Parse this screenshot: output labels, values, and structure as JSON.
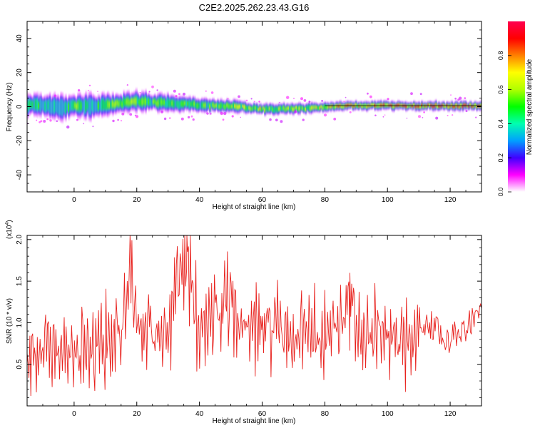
{
  "title": "C2E2.2025.262.23.43.G16",
  "chart_data": [
    {
      "type": "heatmap",
      "xlabel": "Height of straight line (km)",
      "ylabel": "Frequency (Hz)",
      "xlim": [
        -15,
        130
      ],
      "ylim": [
        -50,
        50
      ],
      "xticks": [
        "0",
        "20",
        "40",
        "60",
        "80",
        "100",
        "120"
      ],
      "yticks": [
        "40",
        "20",
        "0",
        "-20",
        "-40"
      ],
      "colorbar": {
        "label": "Normalized spectral amplitude",
        "range": [
          0,
          1
        ],
        "ticks": [
          "0.0",
          "0.2",
          "0.4",
          "0.6",
          "0.8"
        ],
        "colors": [
          "#ffffff",
          "#ff00ff",
          "#4000ff",
          "#00a0ff",
          "#00ffb0",
          "#00ff00",
          "#b0ff00",
          "#ffff00",
          "#ff8000",
          "#ff0000",
          "#ff0050"
        ]
      },
      "band": {
        "x": [
          -15,
          -10,
          -5,
          0,
          5,
          10,
          15,
          20,
          25,
          30,
          35,
          40,
          45,
          50,
          55,
          60,
          65,
          70,
          75,
          80,
          85,
          90,
          95,
          100,
          105,
          110,
          115,
          120,
          125,
          130
        ],
        "center_hz": [
          1,
          0.5,
          -0.5,
          0.5,
          0,
          1,
          2,
          3,
          2.5,
          2,
          1.5,
          1,
          0.5,
          0.5,
          -0.5,
          -1.5,
          -1.5,
          -1,
          -1,
          0,
          0.5,
          0.5,
          0.5,
          0.5,
          0.5,
          0.5,
          0.5,
          0.5,
          0.5,
          0.5
        ],
        "halfwidth_hz": [
          6,
          6,
          7,
          6,
          7,
          6,
          6,
          6,
          5,
          5,
          4,
          4,
          3.5,
          3.5,
          3,
          3,
          3,
          3,
          3,
          2.5,
          2.5,
          2.5,
          2.5,
          2.5,
          2.5,
          2.5,
          2.5,
          2.5,
          2.5,
          2.5
        ],
        "amplitude": [
          0.5,
          0.45,
          0.35,
          0.55,
          0.4,
          0.5,
          0.6,
          0.55,
          0.55,
          0.5,
          0.5,
          0.5,
          0.55,
          0.6,
          0.6,
          0.65,
          0.6,
          0.6,
          0.6,
          0.7,
          0.75,
          0.75,
          0.8,
          0.85,
          0.85,
          0.85,
          0.9,
          0.9,
          0.9,
          0.9
        ]
      }
    },
    {
      "type": "line",
      "xlabel": "Height of straight line (km)",
      "ylabel": "SNR (10 * v/v)",
      "y_multiplier": "(x10",
      "y_multiplier_exp": "4",
      "y_multiplier_close": ")",
      "xlim": [
        -15,
        130
      ],
      "ylim": [
        0,
        2.05
      ],
      "xticks": [
        "0",
        "20",
        "40",
        "60",
        "80",
        "100",
        "120"
      ],
      "yticks": [
        "2.0",
        "1.5",
        "1.0",
        "0.5"
      ],
      "line_color": "#e8221e",
      "series": [
        {
          "x": [
            -15,
            -10,
            -5,
            0,
            5,
            10,
            15,
            18,
            20,
            25,
            30,
            36,
            40,
            45,
            50,
            55,
            60,
            65,
            70,
            75,
            80,
            85,
            88,
            90,
            95,
            100,
            105,
            108,
            110,
            115,
            120,
            125,
            130
          ],
          "y": [
            0.6,
            0.75,
            0.7,
            0.8,
            0.75,
            0.8,
            0.95,
            1.9,
            1.0,
            1.0,
            1.05,
            2.05,
            1.0,
            1.2,
            1.35,
            1.0,
            1.05,
            1.05,
            0.8,
            1.1,
            1.0,
            1.05,
            1.6,
            1.0,
            0.95,
            0.9,
            0.9,
            0.75,
            1.05,
            0.95,
            0.8,
            0.95,
            1.15
          ]
        }
      ]
    }
  ]
}
